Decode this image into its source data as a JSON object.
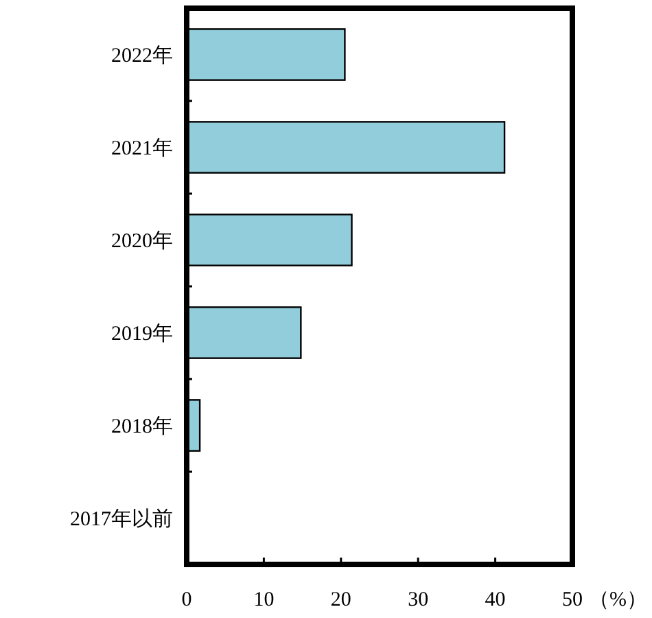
{
  "chart_data": {
    "type": "bar",
    "orientation": "horizontal",
    "categories": [
      "2022年",
      "2021年",
      "2020年",
      "2019年",
      "2018年",
      "2017年以前"
    ],
    "values": [
      20.5,
      41.2,
      21.4,
      14.8,
      1.7,
      0
    ],
    "color": "#92cddc",
    "xlim": [
      0,
      50
    ],
    "xticks": [
      0,
      10,
      20,
      30,
      40,
      50
    ],
    "xlabel": "（%）",
    "grid": false
  }
}
